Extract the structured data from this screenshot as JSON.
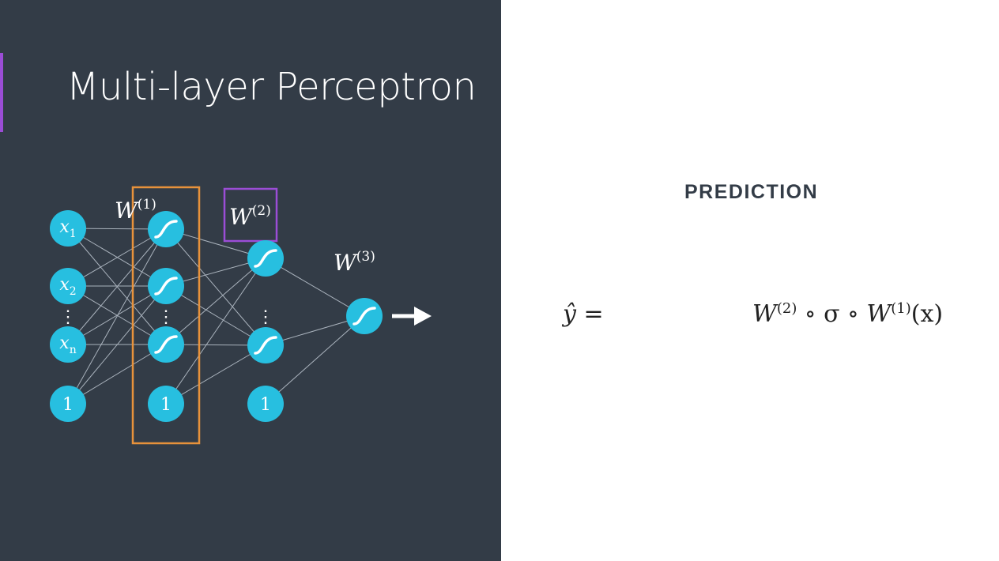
{
  "slide": {
    "title": "Multi-layer Perceptron",
    "section_label": "PREDICTION"
  },
  "network": {
    "input_nodes": [
      "x1",
      "x2",
      "xn",
      "1"
    ],
    "weight_labels": [
      "W(1)",
      "W(2)",
      "W(3)"
    ],
    "bias_label": "1",
    "ellipsis": "⋮",
    "colors": {
      "node": "#27bfe0",
      "layer1_highlight": "#e8923b",
      "layer2_highlight": "#9b4dd6",
      "edge": "#aab3bd",
      "background": "#333c47"
    }
  },
  "equation": {
    "lhs": "ŷ =",
    "rhs_w2": "W",
    "rhs_w2_sup": "(2)",
    "rhs_mid": " ∘ σ ∘ ",
    "rhs_w1": "W",
    "rhs_w1_sup": "(1)",
    "rhs_arg": "(x)"
  }
}
